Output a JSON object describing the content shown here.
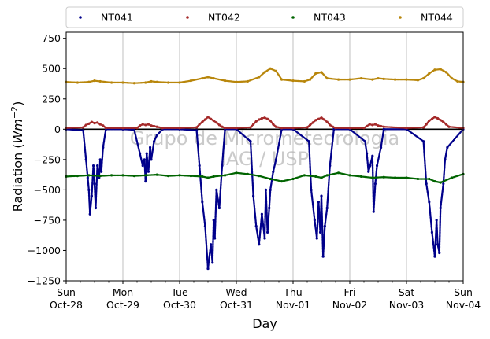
{
  "chart_data": {
    "type": "scatter",
    "ylabel": "Radiation (",
    "ylabel_unit": "Wm",
    "ylabel_exp": "−2",
    "ylabel_close": ")",
    "xlabel": "Day",
    "ylim": [
      -1250,
      800
    ],
    "yticks": [
      -1250,
      -1000,
      -750,
      -500,
      -250,
      0,
      250,
      500,
      750
    ],
    "ytick_labels": [
      "−1250",
      "−1000",
      "−750",
      "−500",
      "−250",
      "0",
      "250",
      "500",
      "750"
    ],
    "xlim": [
      0,
      7
    ],
    "xticks": [
      {
        "pos": 0,
        "l1": "Sun",
        "l2": "Oct-28"
      },
      {
        "pos": 1,
        "l1": "Mon",
        "l2": "Oct-29"
      },
      {
        "pos": 2,
        "l1": "Tue",
        "l2": "Oct-30"
      },
      {
        "pos": 3,
        "l1": "Wed",
        "l2": "Oct-31"
      },
      {
        "pos": 4,
        "l1": "Thu",
        "l2": "Nov-01"
      },
      {
        "pos": 5,
        "l1": "Fri",
        "l2": "Nov-02"
      },
      {
        "pos": 6,
        "l1": "Sat",
        "l2": "Nov-03"
      },
      {
        "pos": 7,
        "l1": "Sun",
        "l2": "Nov-04"
      }
    ],
    "grid_x": true,
    "zero_line": true,
    "legend_placement": "top-outside",
    "watermark": [
      "Grupo de Micrometeorologia",
      "IAG / USP"
    ],
    "series": [
      {
        "name": "NT041",
        "color": "#00008b",
        "x": [
          0.0,
          0.3,
          0.35,
          0.38,
          0.4,
          0.42,
          0.45,
          0.48,
          0.5,
          0.52,
          0.55,
          0.58,
          0.6,
          0.62,
          0.65,
          0.7,
          1.0,
          1.2,
          1.3,
          1.35,
          1.38,
          1.4,
          1.42,
          1.45,
          1.48,
          1.5,
          1.55,
          1.6,
          1.7,
          2.0,
          2.3,
          2.35,
          2.4,
          2.45,
          2.5,
          2.55,
          2.58,
          2.6,
          2.62,
          2.65,
          2.7,
          2.75,
          2.8,
          3.0,
          3.25,
          3.3,
          3.35,
          3.4,
          3.45,
          3.5,
          3.52,
          3.55,
          3.58,
          3.6,
          3.65,
          3.7,
          3.8,
          4.0,
          4.28,
          4.32,
          4.38,
          4.42,
          4.45,
          4.48,
          4.5,
          4.53,
          4.56,
          4.6,
          4.65,
          4.72,
          5.0,
          5.27,
          5.3,
          5.33,
          5.36,
          5.4,
          5.42,
          5.45,
          5.48,
          5.55,
          5.6,
          6.0,
          6.3,
          6.35,
          6.4,
          6.45,
          6.5,
          6.53,
          6.55,
          6.58,
          6.6,
          6.65,
          6.68,
          6.72,
          7.0
        ],
        "y": [
          0,
          -10,
          -250,
          -400,
          -500,
          -700,
          -550,
          -300,
          -450,
          -650,
          -300,
          -400,
          -250,
          -350,
          -150,
          0,
          0,
          -5,
          -200,
          -300,
          -250,
          -430,
          -200,
          -350,
          -150,
          -250,
          -100,
          -50,
          0,
          0,
          -10,
          -300,
          -600,
          -800,
          -1150,
          -950,
          -1100,
          -750,
          -900,
          -500,
          -650,
          -300,
          0,
          0,
          -100,
          -550,
          -800,
          -950,
          -700,
          -900,
          -500,
          -850,
          -650,
          -500,
          -350,
          -250,
          0,
          0,
          -100,
          -500,
          -750,
          -900,
          -600,
          -850,
          -550,
          -1050,
          -800,
          -650,
          -300,
          0,
          0,
          -100,
          -200,
          -350,
          -300,
          -220,
          -680,
          -450,
          -300,
          -150,
          0,
          0,
          -100,
          -450,
          -600,
          -850,
          -1050,
          -750,
          -950,
          -1020,
          -650,
          -450,
          -250,
          -150,
          0
        ]
      },
      {
        "name": "NT042",
        "color": "#a52a2a",
        "x": [
          0.0,
          0.3,
          0.35,
          0.4,
          0.45,
          0.5,
          0.55,
          0.6,
          0.65,
          0.7,
          1.0,
          1.25,
          1.3,
          1.35,
          1.4,
          1.45,
          1.5,
          1.55,
          1.6,
          1.7,
          2.0,
          2.3,
          2.35,
          2.4,
          2.45,
          2.5,
          2.55,
          2.6,
          2.65,
          2.7,
          2.75,
          2.8,
          3.0,
          3.25,
          3.3,
          3.35,
          3.4,
          3.45,
          3.5,
          3.55,
          3.6,
          3.65,
          3.7,
          3.8,
          4.0,
          4.25,
          4.3,
          4.35,
          4.4,
          4.45,
          4.5,
          4.55,
          4.6,
          4.65,
          4.7,
          4.75,
          5.0,
          5.25,
          5.3,
          5.35,
          5.4,
          5.45,
          5.5,
          5.55,
          5.6,
          6.0,
          6.3,
          6.35,
          6.4,
          6.45,
          6.5,
          6.55,
          6.6,
          6.65,
          6.7,
          6.75,
          7.0
        ],
        "y": [
          10,
          15,
          35,
          45,
          60,
          50,
          55,
          40,
          30,
          10,
          10,
          10,
          30,
          40,
          35,
          40,
          30,
          25,
          20,
          10,
          10,
          15,
          40,
          60,
          80,
          100,
          85,
          70,
          55,
          35,
          20,
          10,
          10,
          15,
          40,
          65,
          80,
          90,
          95,
          85,
          70,
          40,
          20,
          10,
          10,
          15,
          35,
          55,
          75,
          85,
          95,
          80,
          60,
          35,
          20,
          10,
          10,
          10,
          25,
          40,
          35,
          40,
          30,
          25,
          20,
          10,
          15,
          40,
          70,
          85,
          100,
          90,
          75,
          60,
          40,
          20,
          10
        ]
      },
      {
        "name": "NT043",
        "color": "#006400",
        "x": [
          0.0,
          0.2,
          0.4,
          0.6,
          0.8,
          1.0,
          1.2,
          1.4,
          1.6,
          1.8,
          2.0,
          2.2,
          2.4,
          2.5,
          2.6,
          2.8,
          3.0,
          3.2,
          3.4,
          3.6,
          3.8,
          4.0,
          4.2,
          4.4,
          4.5,
          4.6,
          4.8,
          5.0,
          5.2,
          5.4,
          5.6,
          5.8,
          6.0,
          6.2,
          6.4,
          6.5,
          6.6,
          6.8,
          7.0
        ],
        "y": [
          -390,
          -385,
          -380,
          -385,
          -380,
          -380,
          -385,
          -380,
          -375,
          -385,
          -380,
          -385,
          -390,
          -400,
          -390,
          -380,
          -360,
          -370,
          -385,
          -410,
          -430,
          -410,
          -380,
          -390,
          -400,
          -380,
          -360,
          -380,
          -390,
          -400,
          -395,
          -400,
          -400,
          -410,
          -410,
          -430,
          -440,
          -400,
          -370
        ]
      },
      {
        "name": "NT044",
        "color": "#b8860b",
        "x": [
          0.0,
          0.2,
          0.4,
          0.5,
          0.6,
          0.8,
          1.0,
          1.2,
          1.4,
          1.5,
          1.6,
          1.8,
          2.0,
          2.2,
          2.4,
          2.5,
          2.6,
          2.8,
          3.0,
          3.2,
          3.4,
          3.5,
          3.6,
          3.7,
          3.8,
          4.0,
          4.2,
          4.3,
          4.4,
          4.5,
          4.6,
          4.8,
          5.0,
          5.2,
          5.4,
          5.5,
          5.6,
          5.8,
          6.0,
          6.2,
          6.3,
          6.4,
          6.5,
          6.6,
          6.7,
          6.8,
          6.9,
          7.0
        ],
        "y": [
          390,
          385,
          390,
          400,
          395,
          385,
          385,
          380,
          385,
          395,
          390,
          385,
          385,
          400,
          420,
          430,
          420,
          400,
          390,
          395,
          430,
          470,
          500,
          480,
          410,
          400,
          395,
          410,
          460,
          470,
          420,
          410,
          410,
          420,
          410,
          420,
          415,
          410,
          410,
          405,
          420,
          460,
          490,
          495,
          470,
          420,
          395,
          390
        ]
      }
    ]
  }
}
